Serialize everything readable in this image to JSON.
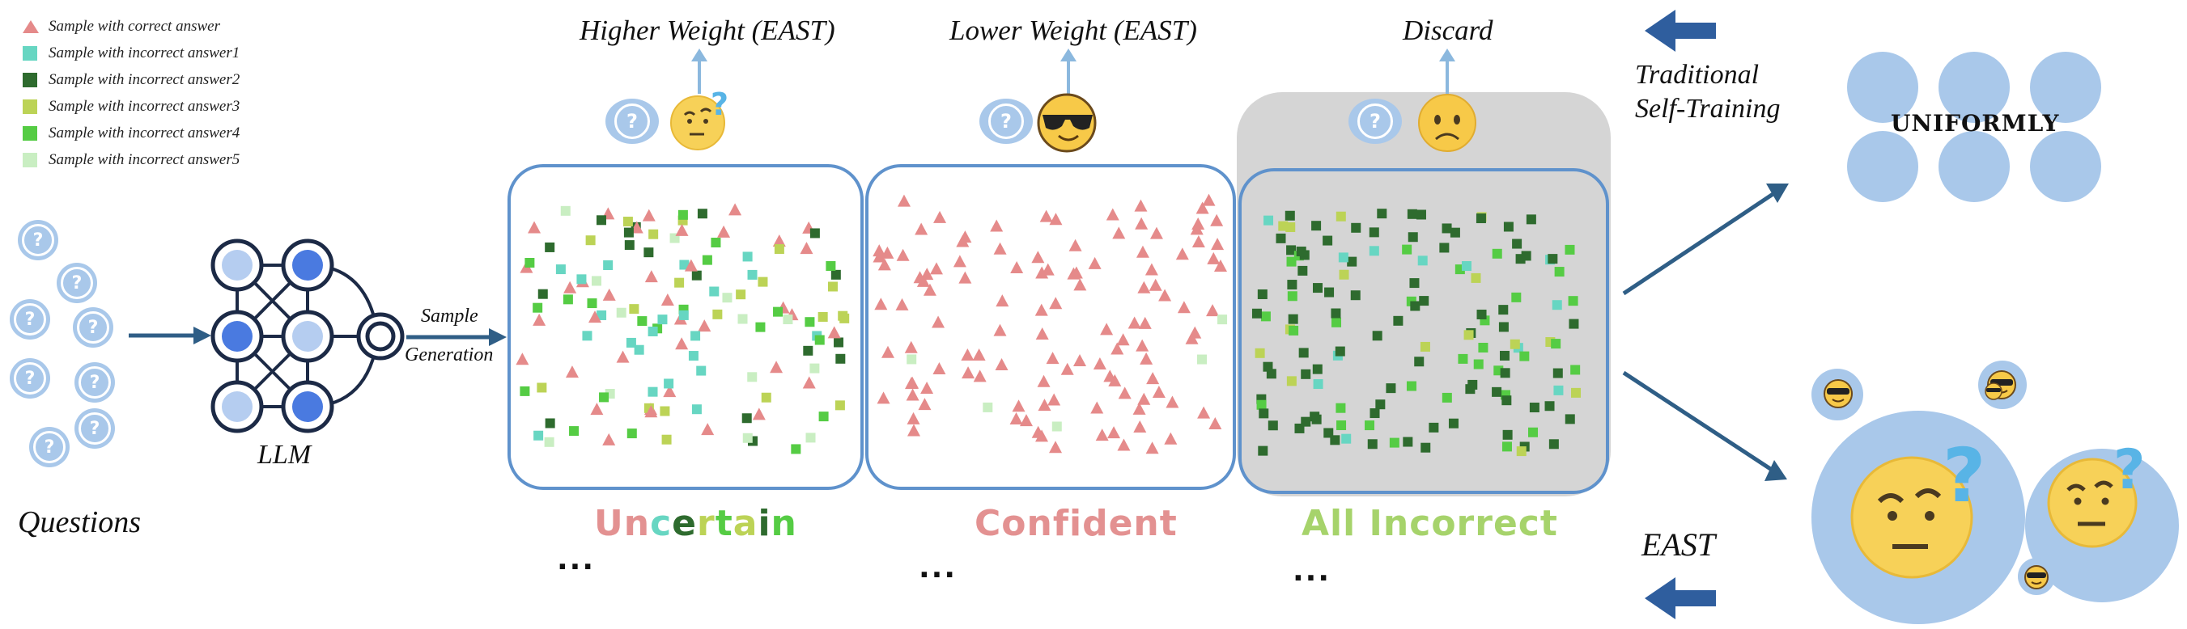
{
  "legend": [
    {
      "label": "Sample with correct answer",
      "color": "#e58a8a",
      "shape": "triangle"
    },
    {
      "label": "Sample with incorrect answer1",
      "color": "#67d6c2",
      "shape": "square"
    },
    {
      "label": "Sample with incorrect answer2",
      "color": "#2e6b2e",
      "shape": "square"
    },
    {
      "label": "Sample with incorrect answer3",
      "color": "#bcd356",
      "shape": "square"
    },
    {
      "label": "Sample with incorrect answer4",
      "color": "#55cc44",
      "shape": "square"
    },
    {
      "label": "Sample with incorrect answer5",
      "color": "#c9eec2",
      "shape": "square"
    }
  ],
  "questions_label": "Questions",
  "llm_label": "LLM",
  "sample_generation": {
    "line1": "Sample",
    "line2": "Generation"
  },
  "weights": {
    "uncertain": "Higher Weight (EAST)",
    "confident": "Lower Weight (EAST)",
    "incorrect": "Discard"
  },
  "captions": {
    "uncertain": "Uncertain",
    "confident": "Confident",
    "incorrect": "All Incorrect"
  },
  "ellipsis": "...",
  "traditional": {
    "line1": "Traditional",
    "line2": "Self-Training"
  },
  "uniformly": "UNIFORMLY",
  "east": "EAST",
  "question_mark": "?",
  "icons": [
    "question-icon",
    "thinking-face-icon",
    "sunglasses-face-icon",
    "frowning-face-icon",
    "arrow-left-icon",
    "arrow-up-icon",
    "neural-network-icon"
  ]
}
